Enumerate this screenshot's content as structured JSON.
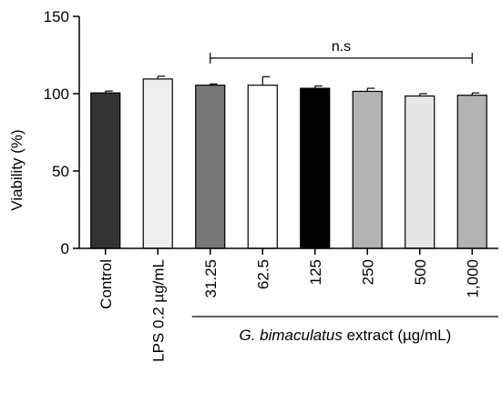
{
  "chart_data": {
    "type": "bar",
    "title": "",
    "ylabel": "Viability (%)",
    "ylim": [
      0,
      150
    ],
    "yticks": [
      0,
      50,
      100,
      150
    ],
    "categories": [
      "Control",
      "LPS 0.2 µg/mL",
      "31.25",
      "62.5",
      "125",
      "250",
      "500",
      "1,000"
    ],
    "values": [
      100.5,
      109.5,
      105.5,
      105.5,
      103.5,
      101.5,
      98.5,
      99.0
    ],
    "errors": [
      1.2,
      1.8,
      0.8,
      5.5,
      1.5,
      2.0,
      1.5,
      1.5
    ],
    "colors": [
      "#333333",
      "#eeeeee",
      "#777777",
      "#ffffff",
      "#000000",
      "#b3b3b3",
      "#e6e6e6",
      "#b3b3b3"
    ],
    "group_label": {
      "italic": "G. bimaculatus",
      "rest": " extract (µg/mL)"
    },
    "significance": {
      "label": "n.s",
      "from_category": 2,
      "to_category": 7,
      "y": 123
    },
    "grid": false,
    "legend": "none"
  }
}
